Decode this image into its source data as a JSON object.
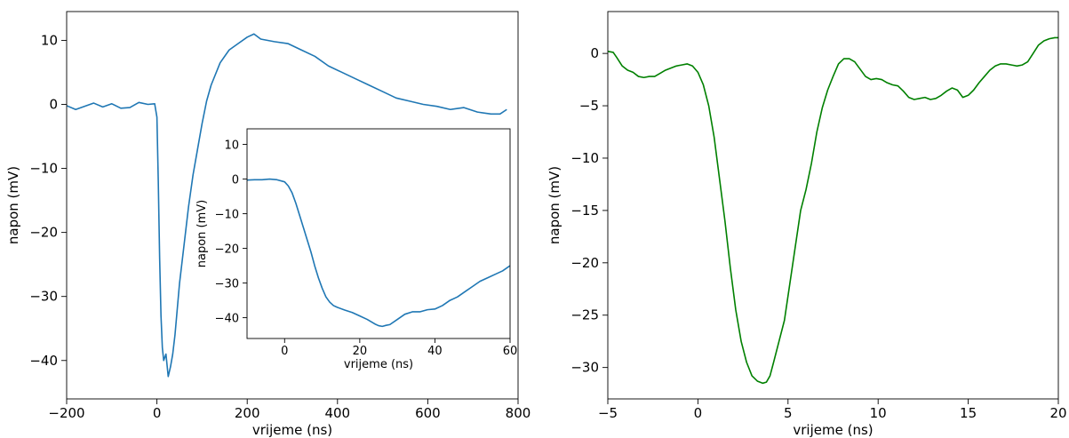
{
  "chart_data": [
    {
      "id": "left-main",
      "type": "line",
      "xlabel": "vrijeme (ns)",
      "ylabel": "napon (mV)",
      "xlim": [
        -200,
        800
      ],
      "ylim": [
        -46,
        14.5
      ],
      "xticks": [
        -200,
        0,
        200,
        400,
        600,
        800
      ],
      "yticks": [
        -40,
        -30,
        -20,
        -10,
        0,
        10
      ],
      "grid": false,
      "color": "#1f77b4",
      "series": [
        {
          "x": [
            -200,
            -180,
            -160,
            -140,
            -120,
            -100,
            -80,
            -60,
            -40,
            -20,
            -5,
            0,
            3,
            6,
            9,
            12,
            15,
            20,
            25,
            30,
            35,
            40,
            45,
            50,
            60,
            70,
            80,
            90,
            100,
            110,
            120,
            140,
            160,
            180,
            200,
            215,
            230,
            260,
            290,
            320,
            350,
            380,
            410,
            440,
            470,
            500,
            530,
            560,
            590,
            620,
            650,
            680,
            710,
            740,
            760,
            775
          ],
          "y": [
            -0.2,
            -0.8,
            -0.3,
            0.2,
            -0.4,
            0.1,
            -0.6,
            -0.5,
            0.3,
            0.0,
            0.1,
            -2,
            -12,
            -24,
            -33,
            -38,
            -40,
            -39,
            -42.5,
            -41,
            -39,
            -36,
            -32,
            -28,
            -22,
            -16,
            -11,
            -7,
            -3,
            0.5,
            3,
            6.5,
            8.5,
            9.5,
            10.5,
            11,
            10.2,
            9.8,
            9.5,
            8.5,
            7.5,
            6,
            5,
            4,
            3,
            2,
            1,
            0.5,
            0,
            -0.3,
            -0.8,
            -0.5,
            -1.2,
            -1.5,
            -1.5,
            -0.8
          ]
        }
      ]
    },
    {
      "id": "left-inset",
      "type": "line",
      "xlabel": "vrijeme (ns)",
      "ylabel": "napon (mV)",
      "xlim": [
        -10,
        60
      ],
      "ylim": [
        -46,
        14.5
      ],
      "xticks": [
        0,
        20,
        40,
        60
      ],
      "yticks": [
        -40,
        -30,
        -20,
        -10,
        0,
        10
      ],
      "grid": false,
      "color": "#1f77b4",
      "series": [
        {
          "x": [
            -10,
            -8,
            -6,
            -4,
            -2,
            0,
            1,
            2,
            3,
            4,
            5,
            6,
            7,
            8,
            9,
            10,
            11,
            12,
            13,
            14,
            16,
            18,
            20,
            22,
            24,
            25,
            26,
            27,
            28,
            30,
            32,
            34,
            36,
            38,
            40,
            42,
            44,
            46,
            48,
            50,
            52,
            54,
            56,
            58,
            60
          ],
          "y": [
            -0.3,
            -0.2,
            -0.2,
            0.0,
            -0.2,
            -0.8,
            -2,
            -4,
            -7,
            -10.5,
            -14,
            -17.5,
            -21,
            -25,
            -28.5,
            -31.5,
            -34,
            -35.5,
            -36.5,
            -37,
            -37.8,
            -38.5,
            -39.5,
            -40.5,
            -41.8,
            -42.3,
            -42.5,
            -42.2,
            -42,
            -40.5,
            -39,
            -38.3,
            -38.3,
            -37.7,
            -37.5,
            -36.5,
            -35,
            -34,
            -32.5,
            -31,
            -29.5,
            -28.5,
            -27.5,
            -26.5,
            -25
          ]
        }
      ]
    },
    {
      "id": "right",
      "type": "line",
      "xlabel": "vrijeme (ns)",
      "ylabel": "napon (mV)",
      "xlim": [
        -5,
        20
      ],
      "ylim": [
        -33,
        4
      ],
      "xticks": [
        -5,
        0,
        5,
        10,
        15,
        20
      ],
      "yticks": [
        -30,
        -25,
        -20,
        -15,
        -10,
        -5,
        0
      ],
      "grid": false,
      "color": "#008000",
      "series": [
        {
          "x": [
            -5,
            -4.7,
            -4.5,
            -4.2,
            -3.9,
            -3.6,
            -3.3,
            -3.0,
            -2.7,
            -2.4,
            -2.1,
            -1.8,
            -1.5,
            -1.2,
            -0.9,
            -0.6,
            -0.3,
            0.0,
            0.3,
            0.6,
            0.9,
            1.2,
            1.5,
            1.8,
            2.1,
            2.4,
            2.7,
            3.0,
            3.3,
            3.6,
            3.8,
            4.0,
            4.2,
            4.5,
            4.8,
            5.1,
            5.4,
            5.7,
            6.0,
            6.3,
            6.6,
            6.9,
            7.2,
            7.5,
            7.8,
            8.1,
            8.4,
            8.7,
            9.0,
            9.3,
            9.6,
            9.9,
            10.2,
            10.5,
            10.8,
            11.1,
            11.4,
            11.7,
            12.0,
            12.3,
            12.6,
            12.9,
            13.2,
            13.5,
            13.8,
            14.1,
            14.4,
            14.7,
            15.0,
            15.3,
            15.6,
            15.9,
            16.2,
            16.5,
            16.8,
            17.1,
            17.4,
            17.7,
            18.0,
            18.3,
            18.6,
            18.9,
            19.2,
            19.5,
            19.8,
            20.0
          ],
          "y": [
            0.2,
            0.1,
            -0.4,
            -1.2,
            -1.6,
            -1.8,
            -2.2,
            -2.3,
            -2.2,
            -2.2,
            -1.9,
            -1.6,
            -1.4,
            -1.2,
            -1.1,
            -1.0,
            -1.2,
            -1.8,
            -3.0,
            -5.0,
            -8.0,
            -12.0,
            -16.0,
            -20.5,
            -24.5,
            -27.5,
            -29.5,
            -30.8,
            -31.3,
            -31.5,
            -31.4,
            -30.8,
            -29.5,
            -27.5,
            -25.5,
            -22.0,
            -18.5,
            -15.0,
            -13.0,
            -10.5,
            -7.5,
            -5.2,
            -3.5,
            -2.2,
            -1.0,
            -0.5,
            -0.5,
            -0.8,
            -1.5,
            -2.2,
            -2.5,
            -2.4,
            -2.5,
            -2.8,
            -3.0,
            -3.1,
            -3.6,
            -4.2,
            -4.4,
            -4.3,
            -4.2,
            -4.4,
            -4.3,
            -4.0,
            -3.6,
            -3.3,
            -3.5,
            -4.2,
            -4.0,
            -3.5,
            -2.8,
            -2.2,
            -1.6,
            -1.2,
            -1.0,
            -1.0,
            -1.1,
            -1.2,
            -1.1,
            -0.8,
            0.0,
            0.8,
            1.2,
            1.4,
            1.5,
            1.5
          ]
        }
      ]
    }
  ]
}
